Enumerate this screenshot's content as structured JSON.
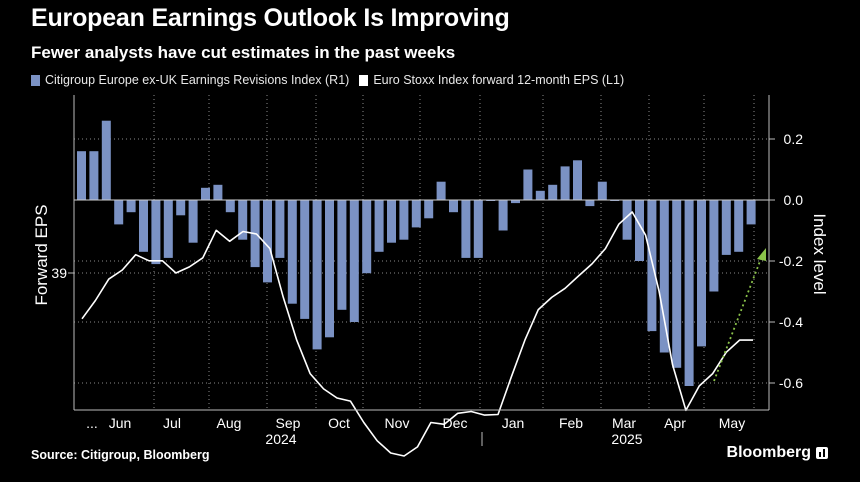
{
  "title": "European Earnings Outlook Is Improving",
  "subtitle": "Fewer analysts have cut estimates in the past weeks",
  "source": "Source: Citigroup, Bloomberg",
  "brand": "Bloomberg",
  "colors": {
    "bar": "#7b92c4",
    "line": "#ffffff",
    "grid": "#8a8a8a",
    "arrow": "#8bc34a",
    "background": "#000000"
  },
  "chart_data": {
    "type": "bar",
    "legend_position": "top-left",
    "grid": true,
    "left_axis": {
      "label": "Forward EPS",
      "ticks": [
        "39"
      ]
    },
    "right_axis": {
      "label": "Index level",
      "range": [
        -0.7,
        0.35
      ],
      "ticks": [
        "0.2",
        "0.0",
        "-0.2",
        "-0.4",
        "-0.6"
      ]
    },
    "x_ticks": [
      "...",
      "Jun",
      "Jul",
      "Aug",
      "Sep",
      "Oct",
      "Nov",
      "Dec",
      "Jan",
      "Feb",
      "Mar",
      "Apr",
      "May"
    ],
    "year_labels": [
      "2024",
      "2025"
    ],
    "series": [
      {
        "name": "Citigroup Europe ex-UK Earnings Revisions Index (R1)",
        "axis": "right",
        "values": [
          0.16,
          0.16,
          0.26,
          -0.08,
          -0.04,
          -0.17,
          -0.21,
          -0.19,
          -0.05,
          -0.14,
          0.04,
          0.05,
          -0.04,
          -0.13,
          -0.22,
          -0.27,
          -0.19,
          -0.34,
          -0.39,
          -0.49,
          -0.45,
          -0.36,
          -0.4,
          -0.24,
          -0.17,
          -0.14,
          -0.13,
          -0.09,
          -0.06,
          0.06,
          -0.04,
          -0.19,
          -0.19,
          0.0,
          -0.1,
          -0.01,
          0.1,
          0.03,
          0.05,
          0.11,
          0.13,
          -0.02,
          0.06,
          0.0,
          -0.13,
          -0.2,
          -0.43,
          -0.5,
          -0.55,
          -0.61,
          -0.48,
          -0.3,
          -0.18,
          -0.17,
          -0.08
        ]
      },
      {
        "name": "Euro Stoxx Index forward 12-month EPS (L1)",
        "axis": "left",
        "values": [
          38.25,
          38.55,
          38.9,
          39.05,
          39.3,
          39.2,
          39.2,
          39.0,
          39.1,
          39.25,
          39.7,
          39.52,
          39.68,
          39.64,
          39.4,
          38.6,
          37.9,
          37.35,
          37.1,
          36.95,
          36.9,
          36.55,
          36.25,
          36.05,
          36.0,
          36.15,
          36.55,
          36.52,
          36.7,
          36.73,
          36.67,
          36.68,
          37.3,
          37.9,
          38.4,
          38.6,
          38.75,
          38.95,
          39.15,
          39.4,
          39.8,
          40.0,
          39.62,
          38.7,
          37.5,
          36.75,
          37.15,
          37.35,
          37.7,
          37.9,
          37.9
        ]
      }
    ],
    "annotation": {
      "type": "arrow",
      "description": "upward trend"
    }
  }
}
